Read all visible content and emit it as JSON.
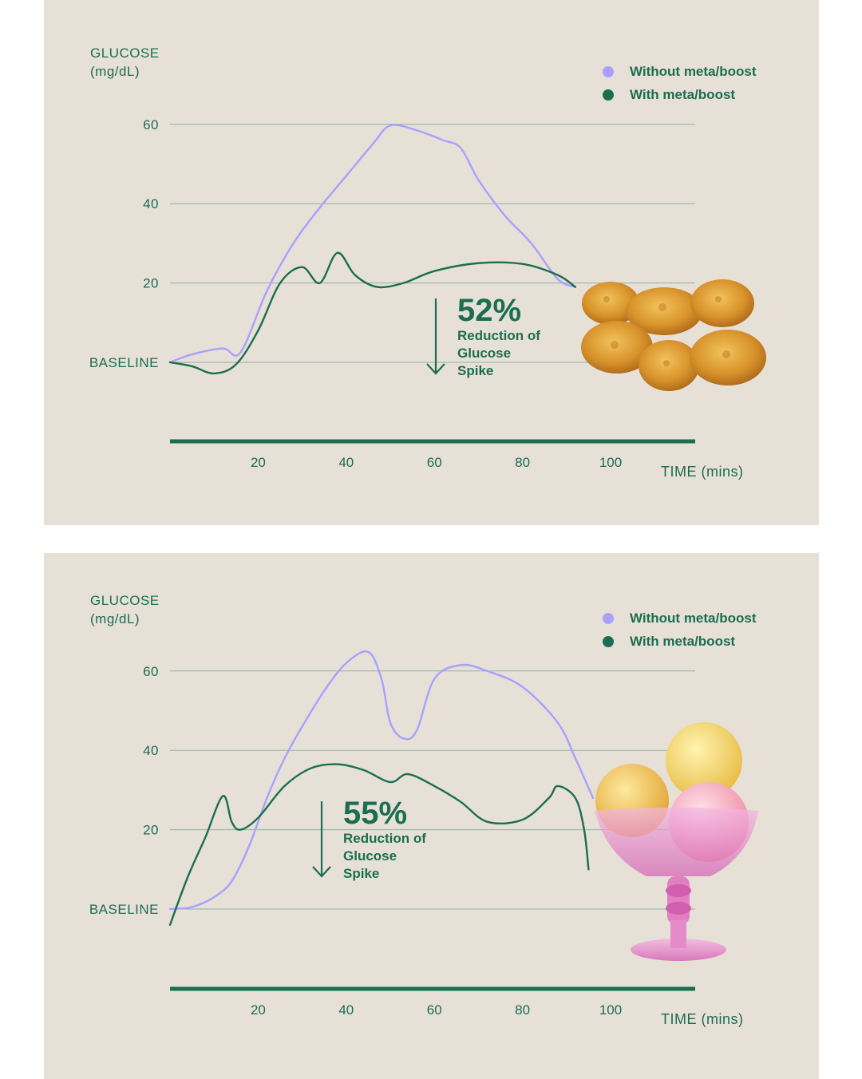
{
  "chart_data": [
    {
      "type": "line",
      "ylabel": "GLUCOSE\n(mg/dL)",
      "xlabel": "TIME\n(mins)",
      "yticks": [
        {
          "value": 60,
          "label": "60"
        },
        {
          "value": 40,
          "label": "40"
        },
        {
          "value": 20,
          "label": "20"
        },
        {
          "value": 0,
          "label": "BASELINE"
        }
      ],
      "xticks": [
        20,
        40,
        60,
        80,
        100
      ],
      "xlim": [
        0,
        119
      ],
      "ylim": [
        -20,
        60
      ],
      "grid": true,
      "legend_position": "top-right",
      "series": [
        {
          "name": "Without meta/boost",
          "color": "#a9a0ff",
          "x": [
            0,
            5,
            12,
            16,
            22,
            28,
            34,
            40,
            46,
            50,
            56,
            62,
            66,
            70,
            76,
            82,
            88,
            92
          ],
          "y": [
            0,
            2,
            3.5,
            2.5,
            18,
            30,
            39,
            47,
            55,
            59.7,
            58.5,
            56,
            54,
            46,
            37,
            30,
            21,
            19
          ]
        },
        {
          "name": "With meta/boost",
          "color": "#1b6e4f",
          "x": [
            0,
            5,
            10,
            15,
            20,
            25,
            30,
            34,
            38,
            42,
            47,
            53,
            60,
            70,
            80,
            88,
            92
          ],
          "y": [
            0,
            -1,
            -2.8,
            -0.5,
            8,
            20,
            24,
            20,
            27.6,
            22,
            19,
            20,
            23,
            25,
            24.8,
            22,
            19
          ]
        }
      ],
      "annotation": {
        "value": "52%",
        "text": "Reduction of Glucose Spike"
      }
    },
    {
      "type": "line",
      "ylabel": "GLUCOSE\n(mg/dL)",
      "xlabel": "TIME\n(mins)",
      "yticks": [
        {
          "value": 60,
          "label": "60"
        },
        {
          "value": 40,
          "label": "40"
        },
        {
          "value": 20,
          "label": "20"
        },
        {
          "value": 0,
          "label": "BASELINE"
        }
      ],
      "xticks": [
        20,
        40,
        60,
        80,
        100
      ],
      "xlim": [
        0,
        119
      ],
      "ylim": [
        -20,
        60
      ],
      "grid": true,
      "legend_position": "top-right",
      "series": [
        {
          "name": "Without meta/boost",
          "color": "#a9a0ff",
          "x": [
            0,
            5,
            10,
            14,
            18,
            22,
            26,
            30,
            35,
            40,
            45,
            48,
            50,
            53,
            56,
            60,
            66,
            72,
            80,
            88,
            92,
            96
          ],
          "y": [
            0,
            0.5,
            3,
            7,
            16,
            28,
            38,
            46,
            55,
            62,
            64.8,
            58,
            47,
            43,
            45,
            58,
            61.5,
            60,
            56,
            47,
            38,
            28
          ]
        },
        {
          "name": "With meta/boost",
          "color": "#1b6e4f",
          "x": [
            0,
            4,
            8,
            12,
            14,
            16,
            20,
            26,
            32,
            38,
            44,
            50,
            54,
            60,
            66,
            72,
            80,
            86,
            88,
            92,
            94,
            95
          ],
          "y": [
            -4,
            8,
            18,
            28.5,
            22,
            20,
            23,
            31,
            35.5,
            36.5,
            35,
            32,
            34,
            31,
            27,
            22,
            22.5,
            28,
            31,
            28,
            20,
            10
          ]
        }
      ],
      "annotation": {
        "value": "55%",
        "text": "Reduction of Glucose Spike"
      }
    }
  ],
  "panels": [
    {
      "legend": [
        "Without meta/boost",
        "With meta/boost"
      ],
      "callout_pct": "52%",
      "callout_desc": "Reduction of Glucose Spike"
    },
    {
      "legend": [
        "Without meta/boost",
        "With meta/boost"
      ],
      "callout_pct": "55%",
      "callout_desc": "Reduction of Glucose Spike"
    }
  ],
  "colors": {
    "panel_bg": "#e6e0d7",
    "green": "#1b6e4f",
    "purple": "#a9a0ff",
    "grid": "#8fb3a2"
  },
  "images": [
    "chicken-nuggets",
    "ice-cream-sundae"
  ]
}
